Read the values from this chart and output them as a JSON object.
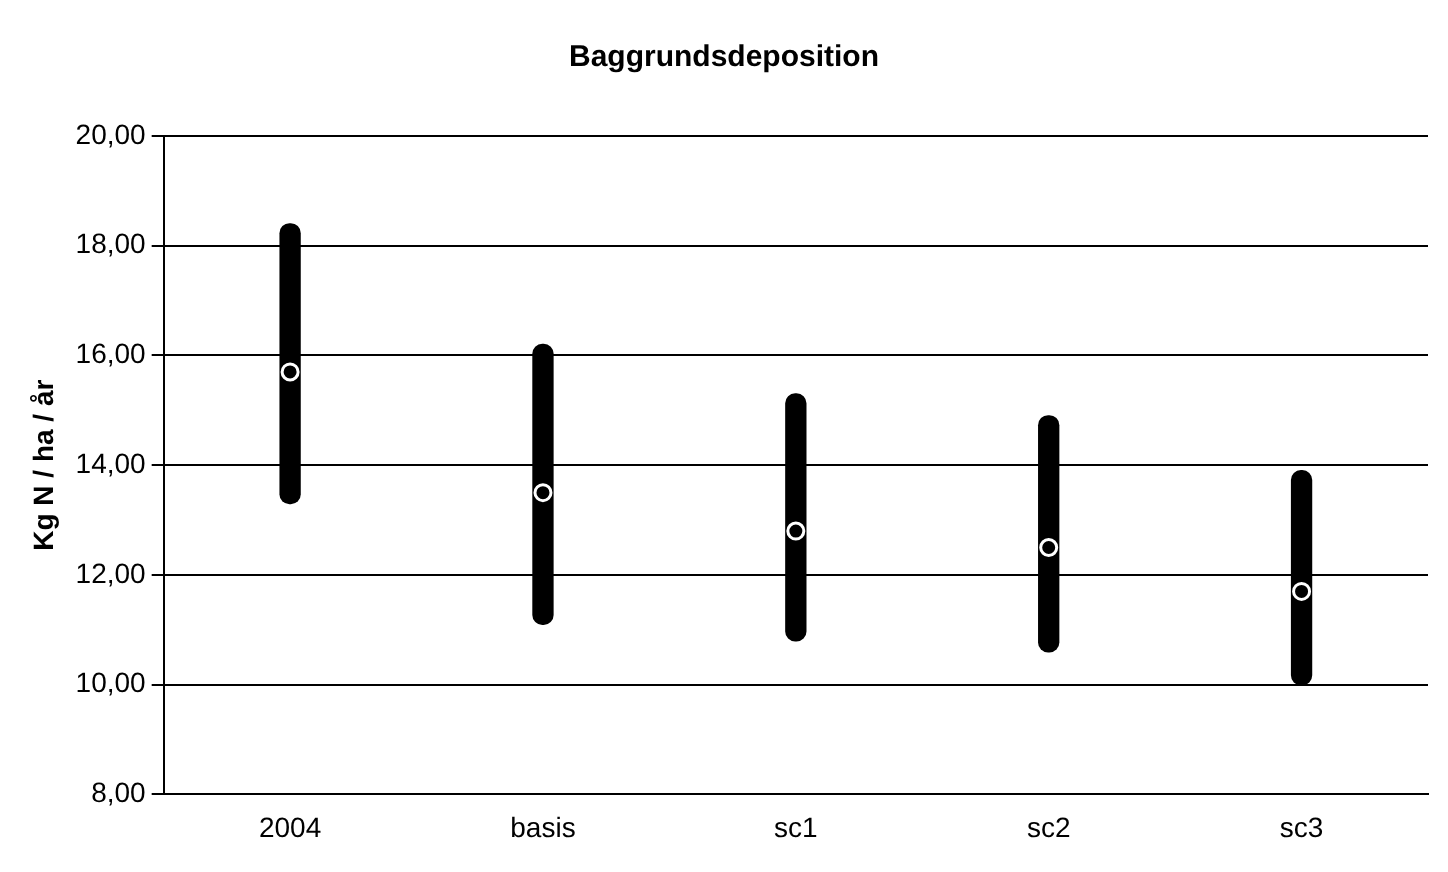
{
  "chart_data": {
    "type": "bar",
    "title": "Baggrundsdeposition",
    "ylabel": "Kg N / ha / år",
    "categories": [
      "2004",
      "basis",
      "sc1",
      "sc2",
      "sc3"
    ],
    "series": [
      {
        "color": "#000000",
        "base": [
          13.3,
          11.1,
          10.8,
          10.6,
          10.0
        ],
        "values": [
          5.1,
          5.1,
          4.5,
          4.3,
          3.9
        ]
      },
      {
        "type": "scatter",
        "color": "#000000",
        "values": [
          15.7,
          13.5,
          12.8,
          12.5,
          11.7
        ]
      }
    ],
    "ylim": [
      8,
      20
    ],
    "yticks": [
      {
        "value": 8,
        "label": "8,00"
      },
      {
        "value": 10,
        "label": "10,00"
      },
      {
        "value": 12,
        "label": "12,00"
      },
      {
        "value": 14,
        "label": "14,00"
      },
      {
        "value": 16,
        "label": "16,00"
      },
      {
        "value": 18,
        "label": "18,00"
      },
      {
        "value": 20,
        "label": "20,00"
      }
    ],
    "grid": "y",
    "legend": false
  }
}
